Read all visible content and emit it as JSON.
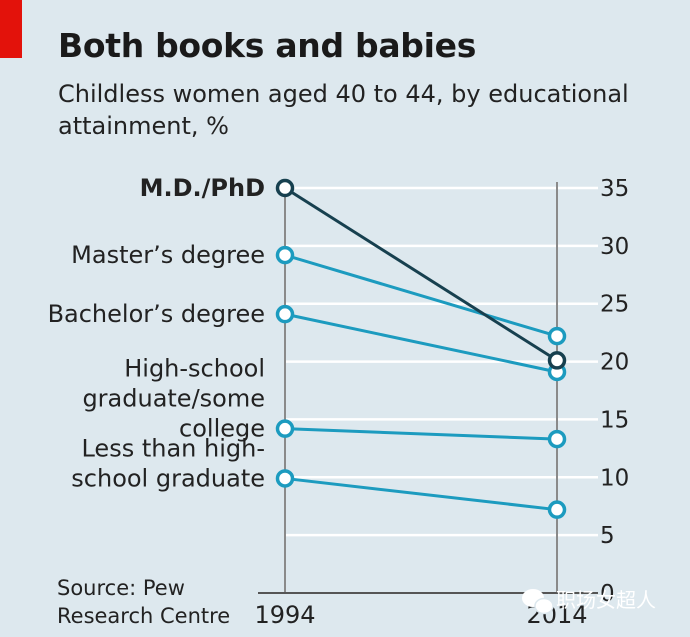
{
  "header": {
    "title": "Both books and babies",
    "subtitle": "Childless women aged 40 to 44, by educational attainment, %"
  },
  "source": {
    "lines": [
      "Source: Pew",
      "Research Centre"
    ]
  },
  "watermark": {
    "text": "职场女超人",
    "icon": "wechat-icon"
  },
  "colors": {
    "background": "#dde8ee",
    "accent": "#e3120b",
    "series_highlight": "#17404f",
    "series_default": "#1c9bbf",
    "axis": "#8a8a8a"
  },
  "chart_data": {
    "type": "line",
    "title": "Both books and babies",
    "subtitle": "Childless women aged 40 to 44, by educational attainment, %",
    "x": [
      "1994",
      "2014"
    ],
    "ylim": [
      0,
      35
    ],
    "yticks": [
      0,
      5,
      10,
      15,
      20,
      25,
      30,
      35
    ],
    "series": [
      {
        "name": "M.D./PhD",
        "label_lines": [
          "M.D./PhD"
        ],
        "values": [
          35.0,
          20.1
        ],
        "highlight": true
      },
      {
        "name": "Master's degree",
        "label_lines": [
          "Master’s degree"
        ],
        "values": [
          29.2,
          22.2
        ],
        "highlight": false
      },
      {
        "name": "Bachelor's degree",
        "label_lines": [
          "Bachelor’s degree"
        ],
        "values": [
          24.1,
          19.1
        ],
        "highlight": false
      },
      {
        "name": "High-school graduate/some college",
        "label_lines": [
          "High-school",
          "graduate/some",
          "college"
        ],
        "values": [
          14.2,
          13.3
        ],
        "highlight": false
      },
      {
        "name": "Less than high-school graduate",
        "label_lines": [
          "Less than high-",
          "school graduate"
        ],
        "values": [
          9.9,
          7.2
        ],
        "highlight": false
      }
    ]
  }
}
